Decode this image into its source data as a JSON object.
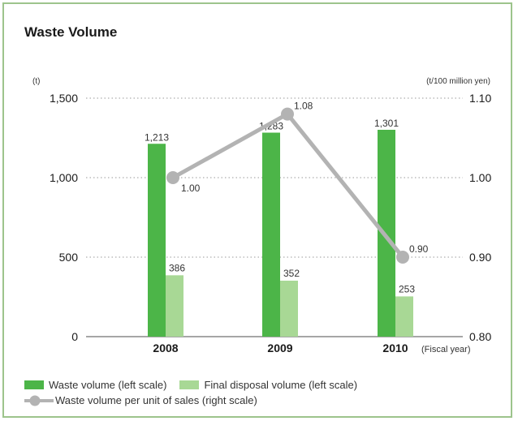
{
  "chart_data": {
    "type": "bar",
    "title": "Waste Volume",
    "xlabel": "(Fiscal year)",
    "left_axis_unit": "(t)",
    "right_axis_unit": "(t/100 million yen)",
    "categories": [
      "2008",
      "2009",
      "2010"
    ],
    "ylim_left": [
      0,
      1500
    ],
    "ylim_right": [
      0.8,
      1.1
    ],
    "yticks_left": [
      "0",
      "500",
      "1,000",
      "1,500"
    ],
    "yticks_right": [
      "0.80",
      "0.90",
      "1.00",
      "1.10"
    ],
    "grid": true,
    "series": [
      {
        "name": "Waste volume (left scale)",
        "kind": "bar",
        "axis": "left",
        "color": "#4cb548",
        "values": [
          1213,
          1283,
          1301
        ],
        "labels": [
          "1,213",
          "1,283",
          "1,301"
        ]
      },
      {
        "name": "Final disposal volume (left scale)",
        "kind": "bar",
        "axis": "left",
        "color": "#a8d895",
        "values": [
          386,
          352,
          253
        ],
        "labels": [
          "386",
          "352",
          "253"
        ]
      },
      {
        "name": "Waste volume per unit of sales (right scale)",
        "kind": "line",
        "axis": "right",
        "color": "#b3b3b3",
        "values": [
          1.0,
          1.08,
          0.9
        ],
        "labels": [
          "1.00",
          "1.08",
          "0.90"
        ]
      }
    ],
    "legend_position": "bottom-left"
  },
  "colors": {
    "border": "#9dc48c",
    "grid": "#999999",
    "line": "#b3b3b3"
  }
}
